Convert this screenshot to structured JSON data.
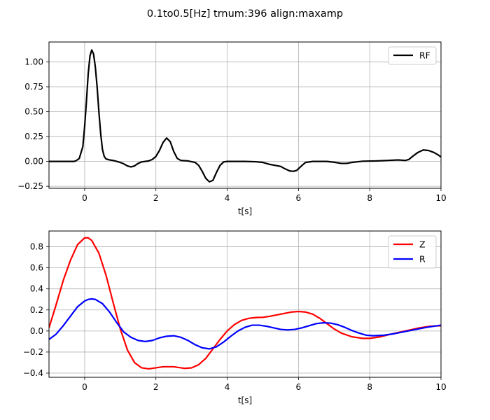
{
  "figure": {
    "suptitle": "0.1to0.5[Hz] trnum:396 align:maxamp"
  },
  "chart_data": [
    {
      "type": "line",
      "xlabel": "t[s]",
      "ylabel": "",
      "xlim": [
        -1,
        10
      ],
      "ylim": [
        -0.27,
        1.2
      ],
      "xticks": [
        "0",
        "2",
        "4",
        "6",
        "8",
        "10"
      ],
      "yticks": [
        "−0.25",
        "0.00",
        "0.25",
        "0.50",
        "0.75",
        "1.00"
      ],
      "grid": true,
      "legend_position": "upper right",
      "series": [
        {
          "name": "RF",
          "color": "#000000",
          "points": [
            [
              -1.0,
              0.0
            ],
            [
              -0.5,
              0.0
            ],
            [
              -0.3,
              0.0
            ],
            [
              -0.25,
              0.005
            ],
            [
              -0.15,
              0.03
            ],
            [
              -0.05,
              0.15
            ],
            [
              0.0,
              0.35
            ],
            [
              0.05,
              0.6
            ],
            [
              0.1,
              0.88
            ],
            [
              0.15,
              1.06
            ],
            [
              0.2,
              1.12
            ],
            [
              0.25,
              1.08
            ],
            [
              0.3,
              0.95
            ],
            [
              0.35,
              0.75
            ],
            [
              0.4,
              0.5
            ],
            [
              0.45,
              0.28
            ],
            [
              0.5,
              0.12
            ],
            [
              0.55,
              0.05
            ],
            [
              0.6,
              0.025
            ],
            [
              0.7,
              0.015
            ],
            [
              0.8,
              0.01
            ],
            [
              0.9,
              0.0
            ],
            [
              1.0,
              -0.01
            ],
            [
              1.1,
              -0.025
            ],
            [
              1.2,
              -0.045
            ],
            [
              1.3,
              -0.055
            ],
            [
              1.4,
              -0.045
            ],
            [
              1.5,
              -0.02
            ],
            [
              1.6,
              -0.005
            ],
            [
              1.8,
              0.005
            ],
            [
              1.9,
              0.02
            ],
            [
              2.0,
              0.05
            ],
            [
              2.1,
              0.11
            ],
            [
              2.2,
              0.19
            ],
            [
              2.3,
              0.235
            ],
            [
              2.4,
              0.2
            ],
            [
              2.5,
              0.1
            ],
            [
              2.6,
              0.03
            ],
            [
              2.7,
              0.01
            ],
            [
              2.9,
              0.005
            ],
            [
              3.1,
              -0.01
            ],
            [
              3.2,
              -0.04
            ],
            [
              3.3,
              -0.1
            ],
            [
              3.4,
              -0.17
            ],
            [
              3.5,
              -0.205
            ],
            [
              3.6,
              -0.19
            ],
            [
              3.7,
              -0.11
            ],
            [
              3.8,
              -0.04
            ],
            [
              3.9,
              -0.005
            ],
            [
              4.0,
              0.0
            ],
            [
              4.5,
              0.0
            ],
            [
              4.8,
              -0.003
            ],
            [
              5.0,
              -0.01
            ],
            [
              5.2,
              -0.03
            ],
            [
              5.35,
              -0.04
            ],
            [
              5.5,
              -0.05
            ],
            [
              5.6,
              -0.07
            ],
            [
              5.75,
              -0.095
            ],
            [
              5.85,
              -0.1
            ],
            [
              5.95,
              -0.09
            ],
            [
              6.1,
              -0.04
            ],
            [
              6.2,
              -0.01
            ],
            [
              6.4,
              0.0
            ],
            [
              6.8,
              0.0
            ],
            [
              7.0,
              -0.008
            ],
            [
              7.2,
              -0.02
            ],
            [
              7.35,
              -0.02
            ],
            [
              7.5,
              -0.01
            ],
            [
              7.8,
              0.002
            ],
            [
              8.2,
              0.005
            ],
            [
              8.5,
              0.01
            ],
            [
              8.8,
              0.015
            ],
            [
              9.0,
              0.01
            ],
            [
              9.1,
              0.02
            ],
            [
              9.2,
              0.05
            ],
            [
              9.35,
              0.09
            ],
            [
              9.5,
              0.115
            ],
            [
              9.65,
              0.11
            ],
            [
              9.8,
              0.09
            ],
            [
              9.9,
              0.07
            ],
            [
              10.0,
              0.045
            ]
          ]
        }
      ]
    },
    {
      "type": "line",
      "xlabel": "t[s]",
      "ylabel": "",
      "xlim": [
        -1,
        10
      ],
      "ylim": [
        -0.44,
        0.95
      ],
      "xticks": [
        "0",
        "2",
        "4",
        "6",
        "8",
        "10"
      ],
      "yticks": [
        "−0.4",
        "−0.2",
        "0.0",
        "0.2",
        "0.4",
        "0.6",
        "0.8"
      ],
      "grid": true,
      "legend_position": "upper right",
      "series": [
        {
          "name": "Z",
          "color": "#ff0000",
          "points": [
            [
              -1.0,
              0.03
            ],
            [
              -0.8,
              0.25
            ],
            [
              -0.6,
              0.48
            ],
            [
              -0.4,
              0.67
            ],
            [
              -0.2,
              0.82
            ],
            [
              0.0,
              0.885
            ],
            [
              0.1,
              0.885
            ],
            [
              0.2,
              0.86
            ],
            [
              0.4,
              0.74
            ],
            [
              0.6,
              0.53
            ],
            [
              0.8,
              0.27
            ],
            [
              1.0,
              0.02
            ],
            [
              1.2,
              -0.18
            ],
            [
              1.4,
              -0.3
            ],
            [
              1.6,
              -0.35
            ],
            [
              1.8,
              -0.36
            ],
            [
              2.0,
              -0.35
            ],
            [
              2.2,
              -0.34
            ],
            [
              2.5,
              -0.34
            ],
            [
              2.8,
              -0.355
            ],
            [
              3.0,
              -0.35
            ],
            [
              3.2,
              -0.32
            ],
            [
              3.4,
              -0.26
            ],
            [
              3.6,
              -0.17
            ],
            [
              3.8,
              -0.08
            ],
            [
              4.0,
              0.0
            ],
            [
              4.2,
              0.06
            ],
            [
              4.4,
              0.1
            ],
            [
              4.6,
              0.12
            ],
            [
              4.8,
              0.128
            ],
            [
              5.0,
              0.13
            ],
            [
              5.2,
              0.14
            ],
            [
              5.5,
              0.16
            ],
            [
              5.8,
              0.18
            ],
            [
              6.0,
              0.185
            ],
            [
              6.2,
              0.18
            ],
            [
              6.4,
              0.16
            ],
            [
              6.6,
              0.12
            ],
            [
              6.8,
              0.07
            ],
            [
              7.0,
              0.02
            ],
            [
              7.2,
              -0.02
            ],
            [
              7.5,
              -0.055
            ],
            [
              7.8,
              -0.07
            ],
            [
              8.0,
              -0.07
            ],
            [
              8.3,
              -0.055
            ],
            [
              8.6,
              -0.03
            ],
            [
              9.0,
              0.0
            ],
            [
              9.4,
              0.03
            ],
            [
              9.7,
              0.045
            ],
            [
              10.0,
              0.05
            ]
          ]
        },
        {
          "name": "R",
          "color": "#0000ff",
          "points": [
            [
              -1.0,
              -0.08
            ],
            [
              -0.8,
              -0.03
            ],
            [
              -0.6,
              0.05
            ],
            [
              -0.4,
              0.14
            ],
            [
              -0.2,
              0.23
            ],
            [
              0.0,
              0.285
            ],
            [
              0.1,
              0.3
            ],
            [
              0.2,
              0.305
            ],
            [
              0.3,
              0.3
            ],
            [
              0.5,
              0.26
            ],
            [
              0.7,
              0.18
            ],
            [
              0.9,
              0.08
            ],
            [
              1.1,
              -0.01
            ],
            [
              1.3,
              -0.06
            ],
            [
              1.5,
              -0.09
            ],
            [
              1.7,
              -0.1
            ],
            [
              1.9,
              -0.09
            ],
            [
              2.1,
              -0.065
            ],
            [
              2.3,
              -0.05
            ],
            [
              2.5,
              -0.045
            ],
            [
              2.7,
              -0.06
            ],
            [
              2.9,
              -0.09
            ],
            [
              3.1,
              -0.13
            ],
            [
              3.3,
              -0.16
            ],
            [
              3.5,
              -0.17
            ],
            [
              3.7,
              -0.15
            ],
            [
              3.9,
              -0.105
            ],
            [
              4.1,
              -0.05
            ],
            [
              4.3,
              0.0
            ],
            [
              4.5,
              0.035
            ],
            [
              4.7,
              0.055
            ],
            [
              4.9,
              0.055
            ],
            [
              5.1,
              0.045
            ],
            [
              5.3,
              0.03
            ],
            [
              5.5,
              0.015
            ],
            [
              5.7,
              0.01
            ],
            [
              5.9,
              0.015
            ],
            [
              6.1,
              0.03
            ],
            [
              6.3,
              0.05
            ],
            [
              6.5,
              0.07
            ],
            [
              6.7,
              0.078
            ],
            [
              6.9,
              0.075
            ],
            [
              7.1,
              0.06
            ],
            [
              7.3,
              0.035
            ],
            [
              7.5,
              0.005
            ],
            [
              7.7,
              -0.02
            ],
            [
              7.9,
              -0.04
            ],
            [
              8.1,
              -0.045
            ],
            [
              8.4,
              -0.04
            ],
            [
              8.7,
              -0.025
            ],
            [
              9.0,
              -0.005
            ],
            [
              9.3,
              0.015
            ],
            [
              9.6,
              0.035
            ],
            [
              10.0,
              0.055
            ]
          ]
        }
      ]
    }
  ]
}
